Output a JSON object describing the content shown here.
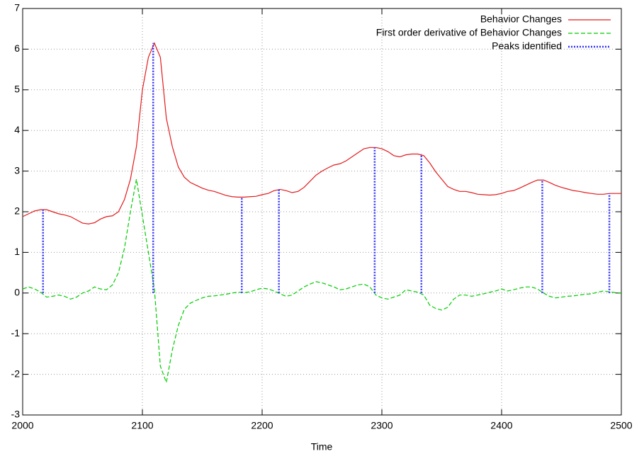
{
  "chart_data": {
    "type": "line",
    "xlabel": "Time",
    "xlim": [
      2000,
      2500
    ],
    "ylim": [
      -3,
      7
    ],
    "xticks": [
      2000,
      2100,
      2200,
      2300,
      2400,
      2500
    ],
    "yticks": [
      -3,
      -2,
      -1,
      0,
      1,
      2,
      3,
      4,
      5,
      6,
      7
    ],
    "grid": true,
    "legend": "top-right",
    "x": [
      2000,
      2005,
      2010,
      2015,
      2020,
      2025,
      2030,
      2035,
      2040,
      2045,
      2050,
      2055,
      2060,
      2065,
      2070,
      2075,
      2080,
      2085,
      2090,
      2095,
      2100,
      2105,
      2110,
      2115,
      2120,
      2125,
      2130,
      2135,
      2140,
      2145,
      2150,
      2155,
      2160,
      2165,
      2170,
      2175,
      2180,
      2185,
      2190,
      2195,
      2200,
      2205,
      2210,
      2215,
      2220,
      2225,
      2230,
      2235,
      2240,
      2245,
      2250,
      2255,
      2260,
      2265,
      2270,
      2275,
      2280,
      2285,
      2290,
      2295,
      2300,
      2305,
      2310,
      2315,
      2320,
      2325,
      2330,
      2335,
      2340,
      2345,
      2350,
      2355,
      2360,
      2365,
      2370,
      2375,
      2380,
      2385,
      2390,
      2395,
      2400,
      2405,
      2410,
      2415,
      2420,
      2425,
      2430,
      2435,
      2440,
      2445,
      2450,
      2455,
      2460,
      2465,
      2470,
      2475,
      2480,
      2485,
      2490,
      2495,
      2500
    ],
    "series": [
      {
        "name": "Behavior Changes",
        "color": "#e41a1c",
        "style": "solid",
        "values": [
          1.88,
          1.95,
          2.02,
          2.05,
          2.05,
          2.0,
          1.95,
          1.92,
          1.88,
          1.8,
          1.72,
          1.7,
          1.73,
          1.82,
          1.88,
          1.9,
          2.0,
          2.3,
          2.8,
          3.6,
          5.0,
          5.8,
          6.15,
          5.8,
          4.3,
          3.6,
          3.1,
          2.85,
          2.72,
          2.65,
          2.58,
          2.53,
          2.5,
          2.45,
          2.4,
          2.37,
          2.36,
          2.36,
          2.37,
          2.38,
          2.42,
          2.45,
          2.52,
          2.55,
          2.52,
          2.47,
          2.5,
          2.6,
          2.75,
          2.9,
          3.0,
          3.08,
          3.15,
          3.18,
          3.25,
          3.35,
          3.45,
          3.55,
          3.58,
          3.58,
          3.55,
          3.48,
          3.38,
          3.35,
          3.4,
          3.42,
          3.42,
          3.38,
          3.2,
          2.98,
          2.8,
          2.62,
          2.55,
          2.5,
          2.5,
          2.47,
          2.43,
          2.42,
          2.41,
          2.42,
          2.45,
          2.5,
          2.52,
          2.58,
          2.65,
          2.72,
          2.78,
          2.78,
          2.72,
          2.65,
          2.6,
          2.56,
          2.52,
          2.5,
          2.47,
          2.45,
          2.43,
          2.43,
          2.45,
          2.45,
          2.45
        ]
      },
      {
        "name": "First order derivative of Behavior Changes",
        "color": "#00cc00",
        "style": "dashed",
        "values": [
          0.1,
          0.15,
          0.1,
          0.02,
          -0.1,
          -0.08,
          -0.05,
          -0.08,
          -0.15,
          -0.1,
          0.0,
          0.05,
          0.15,
          0.1,
          0.08,
          0.2,
          0.5,
          1.1,
          2.0,
          2.8,
          1.9,
          1.0,
          0.1,
          -1.8,
          -2.2,
          -1.4,
          -0.8,
          -0.4,
          -0.25,
          -0.18,
          -0.12,
          -0.08,
          -0.07,
          -0.05,
          -0.03,
          0.0,
          0.02,
          0.01,
          0.03,
          0.08,
          0.12,
          0.1,
          0.05,
          -0.02,
          -0.08,
          -0.05,
          0.05,
          0.15,
          0.22,
          0.28,
          0.25,
          0.2,
          0.15,
          0.08,
          0.1,
          0.15,
          0.2,
          0.22,
          0.15,
          -0.05,
          -0.12,
          -0.15,
          -0.1,
          -0.05,
          0.08,
          0.05,
          0.02,
          -0.05,
          -0.3,
          -0.38,
          -0.42,
          -0.35,
          -0.15,
          -0.05,
          -0.05,
          -0.08,
          -0.05,
          -0.02,
          0.02,
          0.05,
          0.1,
          0.05,
          0.08,
          0.12,
          0.15,
          0.15,
          0.1,
          0.0,
          -0.08,
          -0.12,
          -0.1,
          -0.08,
          -0.07,
          -0.05,
          -0.03,
          -0.02,
          0.02,
          0.05,
          0.03,
          0.01,
          0.0
        ]
      },
      {
        "name": "Peaks identified",
        "color": "#3333ff",
        "style": "impulses",
        "x": [
          2017,
          2109,
          2183,
          2214,
          2294,
          2333,
          2434,
          2490
        ],
        "values": [
          2.05,
          6.15,
          2.35,
          2.55,
          3.58,
          3.42,
          2.78,
          2.45
        ]
      }
    ]
  }
}
